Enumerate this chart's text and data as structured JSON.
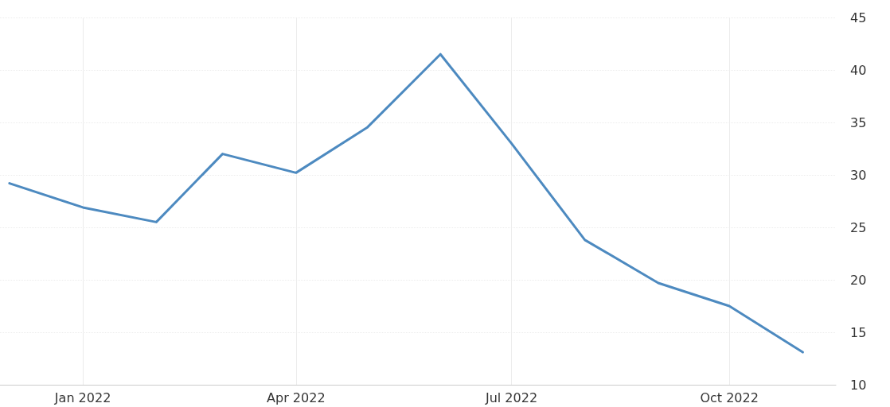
{
  "chart_data": {
    "type": "line",
    "x": [
      "2021-12",
      "2022-01",
      "2022-02",
      "2022-03",
      "2022-04",
      "2022-05",
      "2022-06",
      "2022-07",
      "2022-08",
      "2022-09",
      "2022-10",
      "2022-11"
    ],
    "series": [
      {
        "color": "#4d8ac0",
        "values": [
          29.2,
          26.9,
          25.5,
          32.0,
          30.2,
          34.5,
          41.5,
          33.0,
          23.8,
          19.7,
          17.5,
          13.1
        ]
      }
    ],
    "xlim": [
      "2021-11-27",
      "2022-11-15"
    ],
    "xticks": [
      {
        "value": "2022-01",
        "label": "Jan 2022"
      },
      {
        "value": "2022-04",
        "label": "Apr 2022"
      },
      {
        "value": "2022-07",
        "label": "Jul 2022"
      },
      {
        "value": "2022-10",
        "label": "Oct 2022"
      }
    ],
    "ylim": [
      10,
      45
    ],
    "yticks": [
      10,
      15,
      20,
      25,
      30,
      35,
      40,
      45
    ],
    "grid": true,
    "marker": "none",
    "line_style": "solid"
  }
}
